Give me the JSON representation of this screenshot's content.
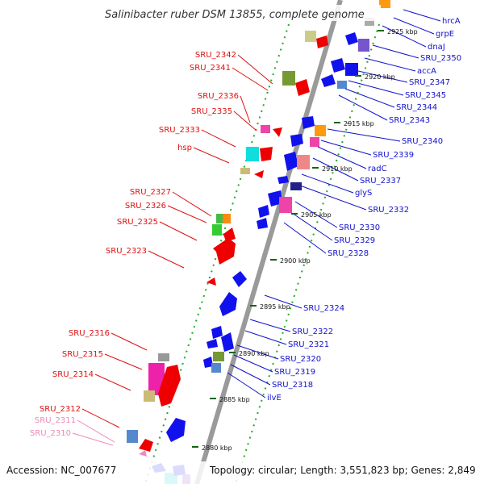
{
  "title": "Salinibacter ruber DSM 13855, complete genome",
  "accession": "Accession: NC_007677",
  "summary": "Topology: circular; Length: 3,551,823 bp; Genes: 2,849",
  "colors": {
    "backbone": "#999999",
    "left_label": "#dd1111",
    "pseudo_label": "#ee88bb",
    "right_label": "#1111cc",
    "tick": "#228822"
  },
  "scale_ticks": [
    {
      "text": "2925 kbp"
    },
    {
      "text": "2920 kbp"
    },
    {
      "text": "2915 kbp"
    },
    {
      "text": "2910 kbp"
    },
    {
      "text": "2905 kbp"
    },
    {
      "text": "2900 kbp"
    },
    {
      "text": "2895 kbp"
    },
    {
      "text": "2890 kbp"
    },
    {
      "text": "2885 kbp"
    },
    {
      "text": "2880 kbp"
    }
  ],
  "left_labels": [
    {
      "text": "SRU_2342",
      "style": "normal"
    },
    {
      "text": "SRU_2341",
      "style": "normal"
    },
    {
      "text": "SRU_2336",
      "style": "normal"
    },
    {
      "text": "SRU_2335",
      "style": "normal"
    },
    {
      "text": "SRU_2333",
      "style": "normal"
    },
    {
      "text": "hsp",
      "style": "normal"
    },
    {
      "text": "SRU_2327",
      "style": "normal"
    },
    {
      "text": "SRU_2326",
      "style": "normal"
    },
    {
      "text": "SRU_2325",
      "style": "normal"
    },
    {
      "text": "SRU_2323",
      "style": "normal"
    },
    {
      "text": "SRU_2316",
      "style": "normal"
    },
    {
      "text": "SRU_2315",
      "style": "normal"
    },
    {
      "text": "SRU_2314",
      "style": "normal"
    },
    {
      "text": "SRU_2312",
      "style": "normal"
    },
    {
      "text": "SRU_2311",
      "style": "pseudo"
    },
    {
      "text": "SRU_2310",
      "style": "pseudo"
    }
  ],
  "right_labels": [
    {
      "text": "hrcA"
    },
    {
      "text": "grpE"
    },
    {
      "text": "dnaJ"
    },
    {
      "text": "SRU_2350"
    },
    {
      "text": "accA"
    },
    {
      "text": "SRU_2347"
    },
    {
      "text": "SRU_2345"
    },
    {
      "text": "SRU_2344"
    },
    {
      "text": "SRU_2343"
    },
    {
      "text": "SRU_2340"
    },
    {
      "text": "SRU_2339"
    },
    {
      "text": "radC"
    },
    {
      "text": "SRU_2337"
    },
    {
      "text": "glyS"
    },
    {
      "text": "SRU_2332"
    },
    {
      "text": "SRU_2330"
    },
    {
      "text": "SRU_2329"
    },
    {
      "text": "SRU_2328"
    },
    {
      "text": "SRU_2324"
    },
    {
      "text": "SRU_2322"
    },
    {
      "text": "SRU_2321"
    },
    {
      "text": "SRU_2320"
    },
    {
      "text": "SRU_2319"
    },
    {
      "text": "SRU_2318"
    },
    {
      "text": "ilvE"
    }
  ]
}
